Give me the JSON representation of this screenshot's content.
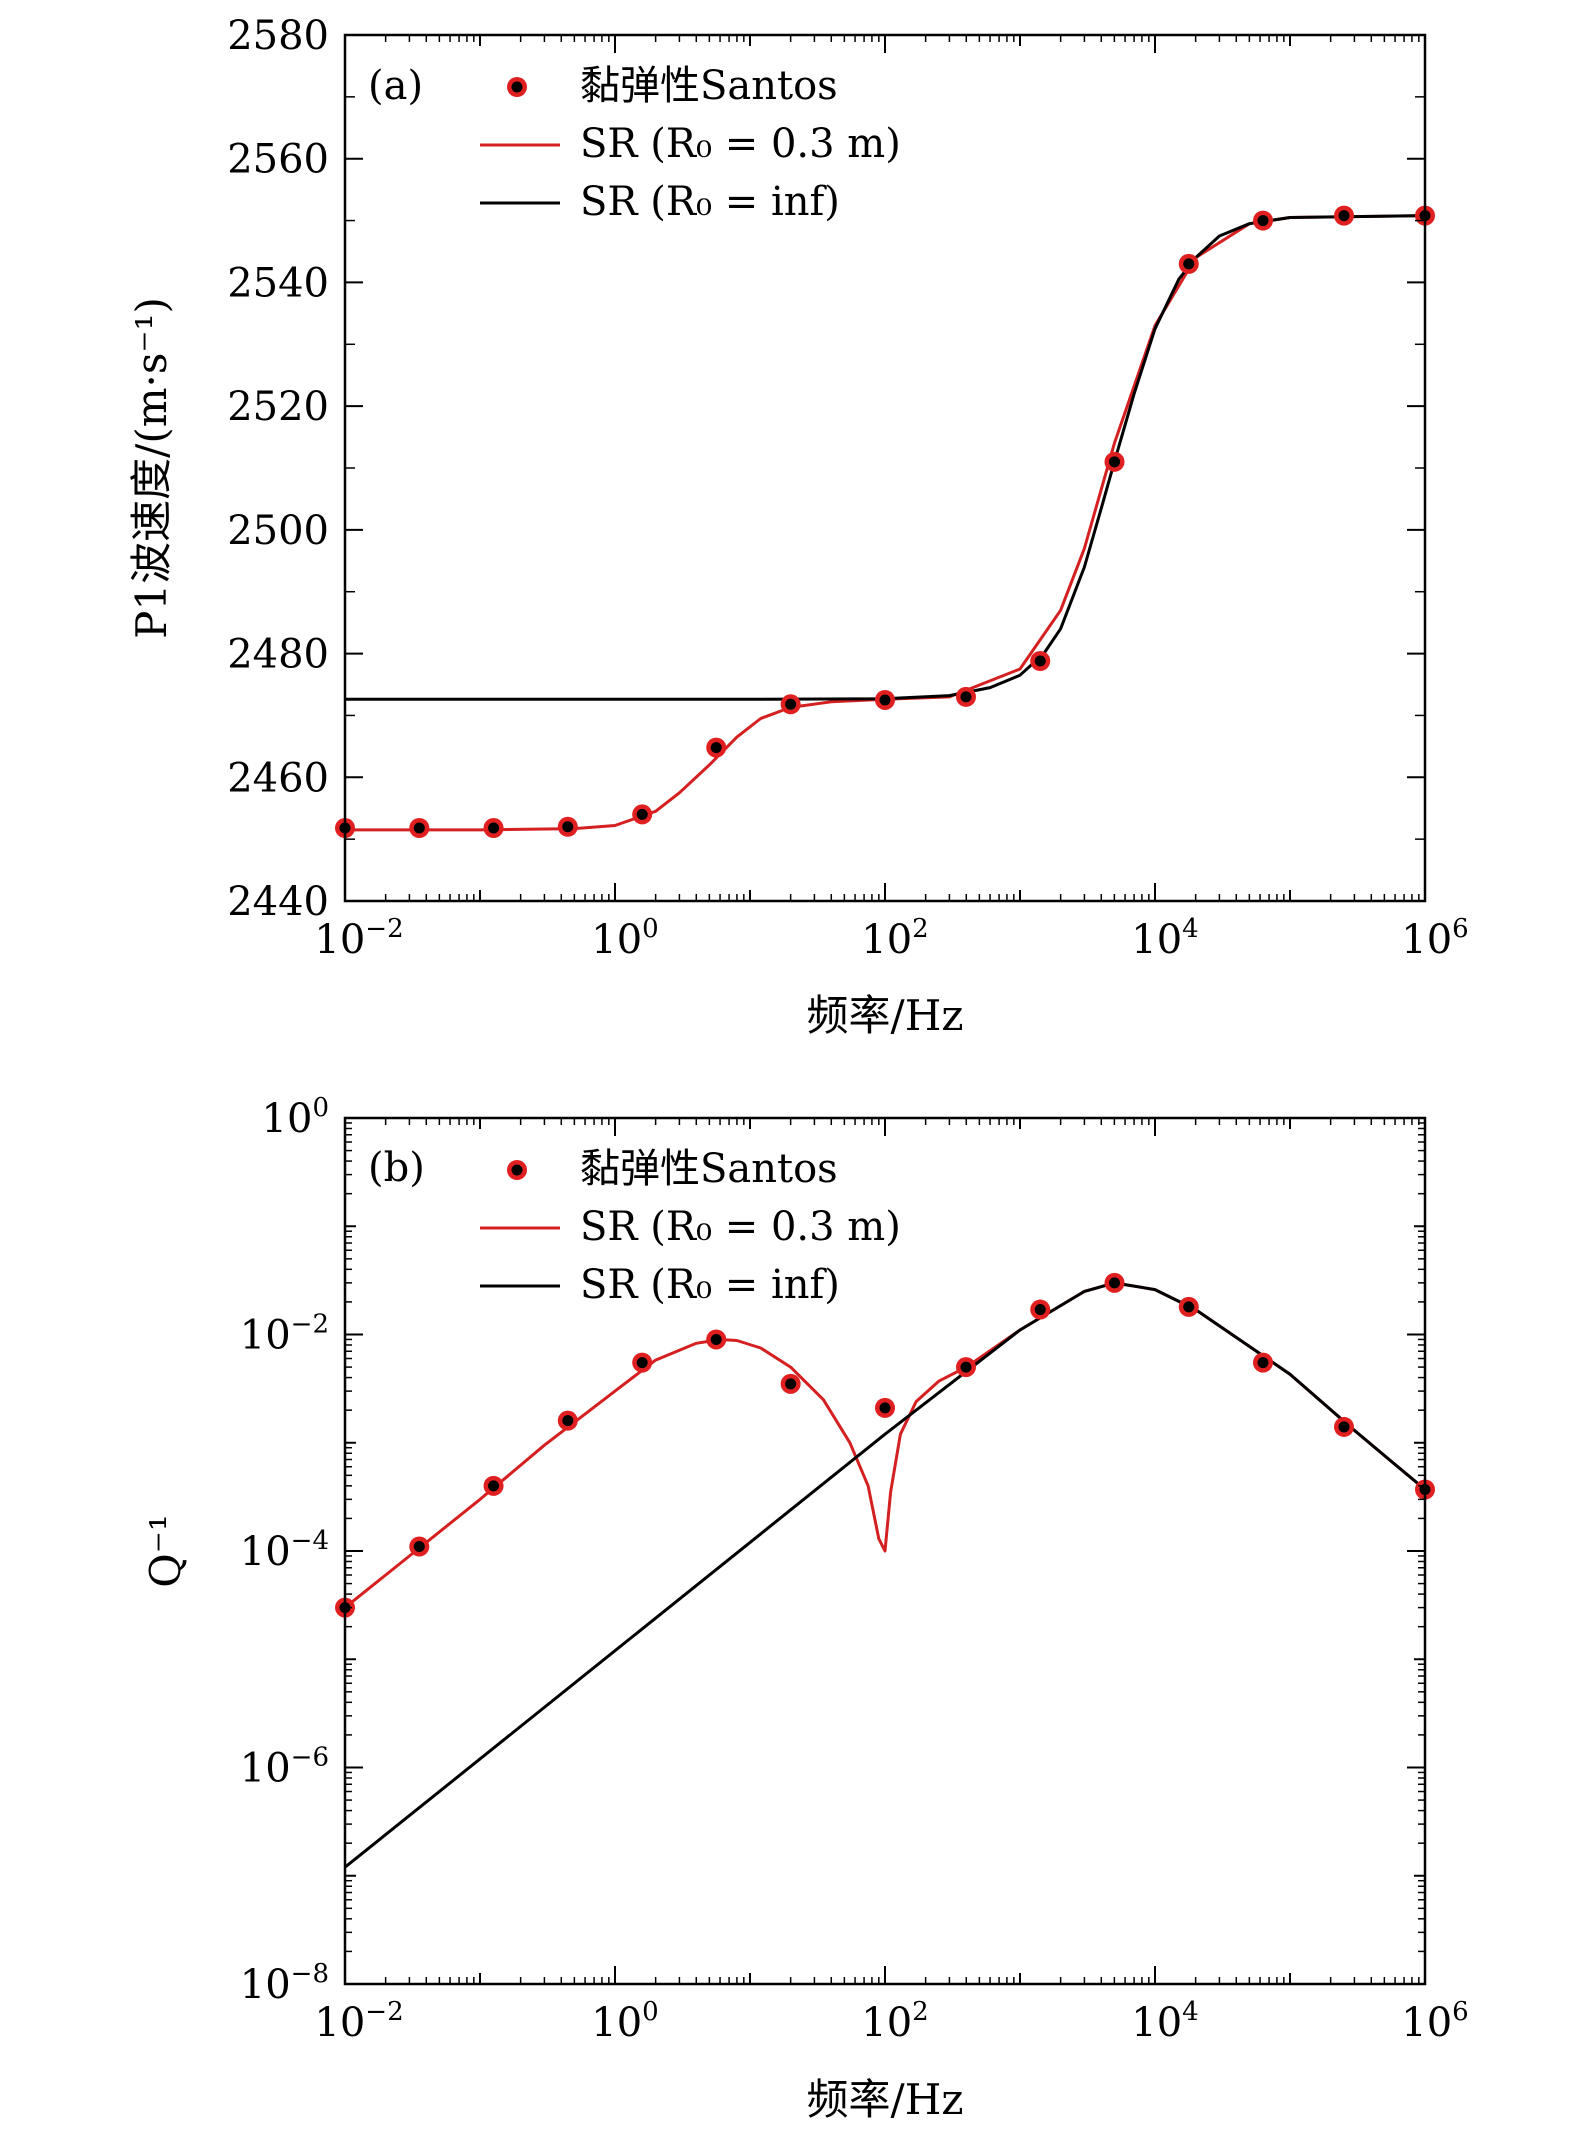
{
  "chart_data": [
    {
      "type": "line",
      "panel_label": "(a)",
      "xlabel": "频率/Hz",
      "ylabel": "P1波速度/(m·s⁻¹)",
      "x_scale": "log",
      "xlim": [
        0.01,
        1000000
      ],
      "ylim": [
        2440,
        2580
      ],
      "y_scale": "linear",
      "y_ticks": [
        "2440",
        "2460",
        "2480",
        "2500",
        "2520",
        "2540",
        "2560",
        "2580"
      ],
      "x_ticks": [
        {
          "base": "10",
          "exp": "−2"
        },
        {
          "base": "10",
          "exp": "0"
        },
        {
          "base": "10",
          "exp": "2"
        },
        {
          "base": "10",
          "exp": "4"
        },
        {
          "base": "10",
          "exp": "6"
        }
      ],
      "legend": {
        "placement": "top-left"
      },
      "series": [
        {
          "name": "黏弹性Santos",
          "kind": "scatter",
          "color": "#e02020",
          "x": [
            0.01,
            0.0355,
            0.126,
            0.447,
            1.59,
            5.62,
            20,
            100,
            398,
            1412,
            5012,
            17783,
            63096,
            251189,
            1000000
          ],
          "y": [
            2451.8,
            2451.8,
            2451.8,
            2452.0,
            2454.0,
            2464.8,
            2471.8,
            2472.5,
            2473.0,
            2478.8,
            2511.0,
            2543.0,
            2550.0,
            2550.8,
            2550.8
          ]
        },
        {
          "name": "SR (R₀ = 0.3 m)",
          "kind": "line",
          "color": "#d42020",
          "x": [
            0.01,
            0.1,
            0.5,
            1,
            2,
            3,
            5,
            8,
            12,
            20,
            40,
            100,
            300,
            1000,
            2000,
            3000,
            5000,
            10000,
            20000,
            50000,
            100000,
            1000000
          ],
          "y": [
            2451.5,
            2451.5,
            2451.7,
            2452.2,
            2454.5,
            2457.5,
            2462.0,
            2466.5,
            2469.5,
            2471.3,
            2472.2,
            2472.6,
            2473.0,
            2477.5,
            2487.0,
            2497.0,
            2514.0,
            2533.0,
            2544.0,
            2549.5,
            2550.5,
            2550.8
          ]
        },
        {
          "name": "SR (R₀ = inf)",
          "kind": "line",
          "color": "#000000",
          "x": [
            0.01,
            1,
            10,
            100,
            300,
            600,
            1000,
            1500,
            2000,
            3000,
            4000,
            5000,
            7000,
            10000,
            15000,
            20000,
            30000,
            50000,
            100000,
            1000000
          ],
          "y": [
            2472.6,
            2472.6,
            2472.6,
            2472.7,
            2473.2,
            2474.5,
            2476.5,
            2480.0,
            2484.0,
            2494.0,
            2503.5,
            2511.0,
            2522.0,
            2532.5,
            2540.5,
            2544.0,
            2547.5,
            2549.5,
            2550.5,
            2550.8
          ]
        }
      ]
    },
    {
      "type": "line",
      "panel_label": "(b)",
      "xlabel": "频率/Hz",
      "ylabel": "Q⁻¹",
      "x_scale": "log",
      "y_scale": "log",
      "xlim": [
        0.01,
        1000000
      ],
      "ylim": [
        1e-08,
        1
      ],
      "x_ticks": [
        {
          "base": "10",
          "exp": "−2"
        },
        {
          "base": "10",
          "exp": "0"
        },
        {
          "base": "10",
          "exp": "2"
        },
        {
          "base": "10",
          "exp": "4"
        },
        {
          "base": "10",
          "exp": "6"
        }
      ],
      "y_ticks": [
        {
          "base": "10",
          "exp": "−8"
        },
        {
          "base": "10",
          "exp": "−6"
        },
        {
          "base": "10",
          "exp": "−4"
        },
        {
          "base": "10",
          "exp": "−2"
        },
        {
          "base": "10",
          "exp": "0"
        }
      ],
      "legend": {
        "placement": "top-left"
      },
      "series": [
        {
          "name": "黏弹性Santos",
          "kind": "scatter",
          "color": "#e02020",
          "x": [
            0.01,
            0.0355,
            0.126,
            0.447,
            1.59,
            5.62,
            20,
            100,
            398,
            1412,
            5012,
            17783,
            63096,
            251189,
            1000000
          ],
          "y": [
            3e-05,
            0.00011,
            0.0004,
            0.0016,
            0.0055,
            0.009,
            0.0035,
            0.0021,
            0.005,
            0.017,
            0.03,
            0.018,
            0.0055,
            0.0014,
            0.00037
          ]
        },
        {
          "name": "SR (R₀ = 0.3 m)",
          "kind": "line",
          "color": "#d42020",
          "x": [
            0.01,
            0.03,
            0.1,
            0.3,
            1,
            2,
            4,
            6,
            8,
            12,
            20,
            35,
            55,
            75,
            90,
            100,
            110,
            130,
            170,
            250,
            400,
            1000,
            3000,
            5000,
            10000,
            20000,
            100000,
            300000,
            1000000
          ],
          "y": [
            3e-05,
            9e-05,
            0.0003,
            0.00095,
            0.003,
            0.0058,
            0.0083,
            0.009,
            0.0088,
            0.0075,
            0.005,
            0.0025,
            0.001,
            0.0004,
            0.00013,
            0.0001,
            0.00035,
            0.0012,
            0.0024,
            0.0037,
            0.005,
            0.011,
            0.025,
            0.03,
            0.026,
            0.017,
            0.0043,
            0.0013,
            0.00037
          ]
        },
        {
          "name": "SR (R₀ = inf)",
          "kind": "line",
          "color": "#000000",
          "x": [
            0.01,
            100,
            1000,
            3000,
            5000,
            10000,
            20000,
            100000,
            300000,
            1000000
          ],
          "y": [
            1.2e-07,
            0.0012,
            0.011,
            0.025,
            0.03,
            0.026,
            0.017,
            0.0043,
            0.0013,
            0.00037
          ]
        }
      ]
    }
  ]
}
